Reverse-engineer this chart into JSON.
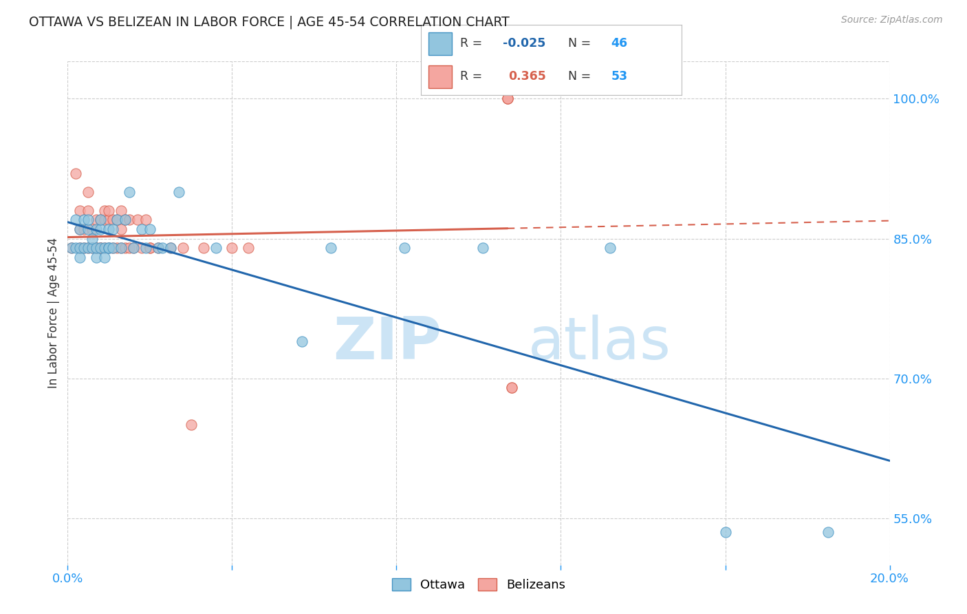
{
  "title": "OTTAWA VS BELIZEAN IN LABOR FORCE | AGE 45-54 CORRELATION CHART",
  "source": "Source: ZipAtlas.com",
  "ylabel": "In Labor Force | Age 45-54",
  "xlim": [
    0.0,
    0.2
  ],
  "ylim": [
    0.5,
    1.04
  ],
  "xticks": [
    0.0,
    0.04,
    0.08,
    0.12,
    0.16,
    0.2
  ],
  "ytick_right_labels": [
    "55.0%",
    "70.0%",
    "85.0%",
    "100.0%"
  ],
  "ytick_right_values": [
    0.55,
    0.7,
    0.85,
    1.0
  ],
  "ottawa_R": -0.025,
  "ottawa_N": 46,
  "belizean_R": 0.365,
  "belizean_N": 53,
  "ottawa_color": "#92c5de",
  "belizean_color": "#f4a6a0",
  "ottawa_edge_color": "#4393c3",
  "belizean_edge_color": "#d6604d",
  "ottawa_line_color": "#2166ac",
  "belizean_line_color": "#d6604d",
  "ottawa_scatter_x": [
    0.001,
    0.002,
    0.002,
    0.003,
    0.003,
    0.003,
    0.004,
    0.004,
    0.005,
    0.005,
    0.005,
    0.006,
    0.006,
    0.007,
    0.007,
    0.007,
    0.008,
    0.008,
    0.008,
    0.009,
    0.009,
    0.01,
    0.01,
    0.01,
    0.011,
    0.011,
    0.012,
    0.013,
    0.014,
    0.015,
    0.016,
    0.018,
    0.019,
    0.02,
    0.022,
    0.023,
    0.025,
    0.027,
    0.036,
    0.057,
    0.064,
    0.082,
    0.101,
    0.132,
    0.16,
    0.185
  ],
  "ottawa_scatter_y": [
    0.84,
    0.84,
    0.87,
    0.83,
    0.84,
    0.86,
    0.84,
    0.87,
    0.84,
    0.86,
    0.87,
    0.84,
    0.85,
    0.83,
    0.84,
    0.86,
    0.84,
    0.86,
    0.87,
    0.84,
    0.83,
    0.84,
    0.86,
    0.84,
    0.84,
    0.86,
    0.87,
    0.84,
    0.87,
    0.9,
    0.84,
    0.86,
    0.84,
    0.86,
    0.84,
    0.84,
    0.84,
    0.9,
    0.84,
    0.74,
    0.84,
    0.84,
    0.84,
    0.84,
    0.535,
    0.535
  ],
  "belizean_scatter_x": [
    0.001,
    0.002,
    0.003,
    0.003,
    0.003,
    0.004,
    0.004,
    0.005,
    0.005,
    0.005,
    0.006,
    0.006,
    0.007,
    0.007,
    0.007,
    0.008,
    0.008,
    0.008,
    0.009,
    0.009,
    0.009,
    0.01,
    0.01,
    0.01,
    0.011,
    0.011,
    0.012,
    0.012,
    0.013,
    0.013,
    0.013,
    0.014,
    0.014,
    0.015,
    0.015,
    0.016,
    0.017,
    0.018,
    0.019,
    0.02,
    0.02,
    0.022,
    0.025,
    0.028,
    0.03,
    0.033,
    0.04,
    0.044,
    0.107,
    0.107,
    0.107,
    0.108,
    0.108
  ],
  "belizean_scatter_y": [
    0.84,
    0.92,
    0.84,
    0.86,
    0.88,
    0.84,
    0.86,
    0.84,
    0.88,
    0.9,
    0.84,
    0.86,
    0.84,
    0.84,
    0.87,
    0.84,
    0.84,
    0.87,
    0.84,
    0.87,
    0.88,
    0.84,
    0.87,
    0.88,
    0.84,
    0.87,
    0.84,
    0.87,
    0.84,
    0.86,
    0.88,
    0.84,
    0.87,
    0.84,
    0.87,
    0.84,
    0.87,
    0.84,
    0.87,
    0.84,
    0.84,
    0.84,
    0.84,
    0.84,
    0.65,
    0.84,
    0.84,
    0.84,
    1.0,
    1.0,
    1.0,
    0.69,
    0.69
  ],
  "watermark_zip": "ZIP",
  "watermark_atlas": "atlas",
  "watermark_color": "#cce4f5",
  "background_color": "#ffffff",
  "grid_color": "#cccccc",
  "legend_r_color_ottawa": "#2166ac",
  "legend_n_color": "#2196F3",
  "legend_r_color_belizean": "#d6604d"
}
